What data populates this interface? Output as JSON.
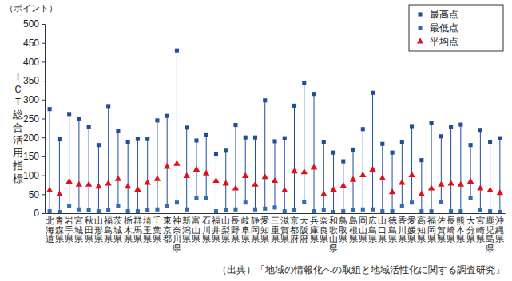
{
  "chart_data": {
    "type": "range_dot",
    "unit_label": "（ポイント）",
    "y_label": "ＩＣＴ総合活用指標",
    "source": "（出典）「地域の情報化への取組と地域活性化に関する調査研究」",
    "categories": [
      "北海道",
      "青森県",
      "岩手県",
      "宮城県",
      "秋田県",
      "山形県",
      "福島県",
      "茨城県",
      "栃木県",
      "群馬県",
      "埼玉県",
      "千葉県",
      "東京都",
      "神奈川県",
      "新潟県",
      "富山県",
      "石川県",
      "福井県",
      "山梨県",
      "長野県",
      "岐阜県",
      "静岡県",
      "愛知県",
      "三重県",
      "滋賀県",
      "京都府",
      "大阪府",
      "兵庫県",
      "奈良県",
      "和歌山県",
      "鳥取県",
      "島根県",
      "岡山県",
      "広島県",
      "山口県",
      "徳島県",
      "香川県",
      "愛媛県",
      "高知県",
      "福岡県",
      "佐賀県",
      "長崎県",
      "熊本県",
      "大分県",
      "宮崎県",
      "鹿児島県",
      "沖縄県"
    ],
    "series": [
      {
        "name": "最高点",
        "color": "#1f4e9c",
        "marker": "square",
        "values": [
          275,
          195,
          262,
          250,
          228,
          180,
          283,
          218,
          188,
          196,
          196,
          245,
          257,
          430,
          226,
          192,
          208,
          155,
          165,
          233,
          200,
          200,
          298,
          190,
          198,
          284,
          345,
          315,
          188,
          160,
          137,
          168,
          222,
          318,
          183,
          160,
          188,
          230,
          140,
          238,
          203,
          228,
          234,
          180,
          220,
          188,
          198
        ]
      },
      {
        "name": "最低点",
        "color": "#2f6db8",
        "marker": "square",
        "values": [
          5,
          3,
          20,
          10,
          8,
          5,
          8,
          20,
          5,
          5,
          8,
          10,
          18,
          28,
          10,
          40,
          40,
          5,
          8,
          10,
          28,
          10,
          12,
          15,
          5,
          8,
          30,
          5,
          8,
          3,
          5,
          8,
          10,
          10,
          5,
          5,
          20,
          28,
          5,
          5,
          30,
          5,
          5,
          40,
          8,
          5,
          3
        ]
      },
      {
        "name": "平均点",
        "color": "#e0101a",
        "marker": "triangle",
        "values": [
          60,
          50,
          83,
          75,
          75,
          70,
          78,
          90,
          70,
          62,
          80,
          90,
          122,
          130,
          98,
          115,
          105,
          85,
          78,
          65,
          98,
          75,
          95,
          85,
          60,
          110,
          108,
          120,
          50,
          62,
          72,
          88,
          100,
          115,
          92,
          55,
          80,
          100,
          50,
          65,
          75,
          78,
          75,
          83,
          65,
          60,
          53
        ]
      }
    ],
    "ylim": [
      0,
      500
    ],
    "yticks": [
      0,
      50,
      100,
      150,
      200,
      250,
      300,
      350,
      400,
      450,
      500
    ],
    "legend": "top-right"
  }
}
